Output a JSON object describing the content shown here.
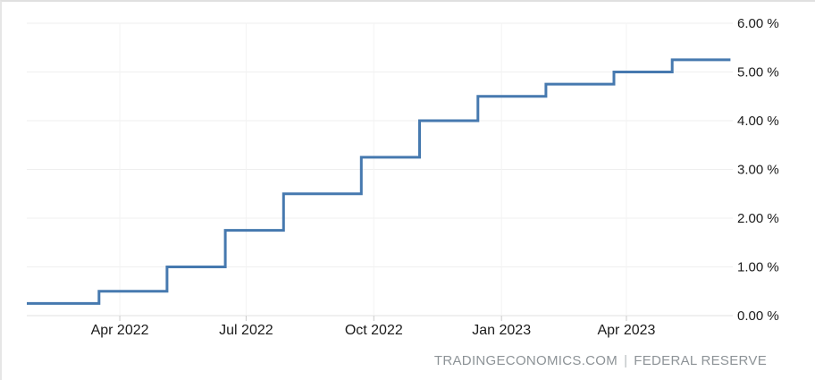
{
  "chart_data": {
    "type": "line",
    "step": "after",
    "line_color": "#4679af",
    "grid": true,
    "ylim": [
      0,
      6
    ],
    "xlim": [
      "2022-01-24",
      "2023-06-16"
    ],
    "points": [
      [
        "2022-01-24",
        0.25
      ],
      [
        "2022-03-17",
        0.5
      ],
      [
        "2022-05-05",
        1.0
      ],
      [
        "2022-06-16",
        1.75
      ],
      [
        "2022-07-28",
        2.5
      ],
      [
        "2022-09-22",
        3.25
      ],
      [
        "2022-11-03",
        4.0
      ],
      [
        "2022-12-15",
        4.5
      ],
      [
        "2023-02-02",
        4.75
      ],
      [
        "2023-03-23",
        5.0
      ],
      [
        "2023-05-04",
        5.25
      ],
      [
        "2023-06-15",
        5.25
      ]
    ],
    "x_ticks": [
      {
        "date": "2022-04-01",
        "label": "Apr 2022"
      },
      {
        "date": "2022-07-01",
        "label": "Jul 2022"
      },
      {
        "date": "2022-10-01",
        "label": "Oct 2022"
      },
      {
        "date": "2023-01-01",
        "label": "Jan 2023"
      },
      {
        "date": "2023-04-01",
        "label": "Apr 2023"
      }
    ],
    "y_ticks": [
      {
        "value": 0,
        "label": "0.00 %"
      },
      {
        "value": 1,
        "label": "1.00 %"
      },
      {
        "value": 2,
        "label": "2.00 %"
      },
      {
        "value": 3,
        "label": "3.00 %"
      },
      {
        "value": 4,
        "label": "4.00 %"
      },
      {
        "value": 5,
        "label": "5.00 %"
      },
      {
        "value": 6,
        "label": "6.00 %"
      }
    ]
  },
  "attribution": {
    "source_site": "TRADINGECONOMICS.COM",
    "separator": "|",
    "source_name": "FEDERAL RESERVE"
  }
}
